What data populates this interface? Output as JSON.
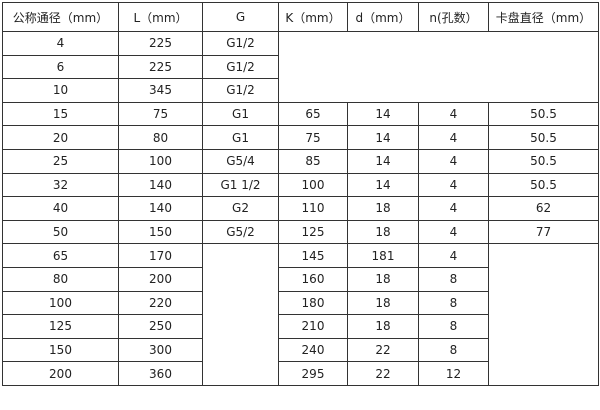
{
  "table": {
    "headers": [
      "公称通径（mm）",
      "L（mm）",
      "G",
      "K（mm）",
      "d（mm）",
      "n(孔数）",
      "卡盘直径（mm）"
    ],
    "rows": [
      [
        "4",
        "225",
        "G1/2",
        "",
        "",
        "",
        ""
      ],
      [
        "6",
        "225",
        "G1/2",
        "",
        "",
        "",
        ""
      ],
      [
        "10",
        "345",
        "G1/2",
        "",
        "",
        "",
        ""
      ],
      [
        "15",
        "75",
        "G1",
        "65",
        "14",
        "4",
        "50.5"
      ],
      [
        "20",
        "80",
        "G1",
        "75",
        "14",
        "4",
        "50.5"
      ],
      [
        "25",
        "100",
        "G5/4",
        "85",
        "14",
        "4",
        "50.5"
      ],
      [
        "32",
        "140",
        "G1  1/2",
        "100",
        "14",
        "4",
        "50.5"
      ],
      [
        "40",
        "140",
        "G2",
        "110",
        "18",
        "4",
        "62"
      ],
      [
        "50",
        "150",
        "G5/2",
        "125",
        "18",
        "4",
        "77"
      ],
      [
        "65",
        "170",
        "",
        "145",
        "181",
        "4",
        ""
      ],
      [
        "80",
        "200",
        "",
        "160",
        "18",
        "8",
        ""
      ],
      [
        "100",
        "220",
        "",
        "180",
        "18",
        "8",
        ""
      ],
      [
        "125",
        "250",
        "",
        "210",
        "18",
        "8",
        ""
      ],
      [
        "150",
        "300",
        "",
        "240",
        "22",
        "8",
        ""
      ],
      [
        "200",
        "360",
        "",
        "295",
        "22",
        "12",
        ""
      ]
    ]
  }
}
